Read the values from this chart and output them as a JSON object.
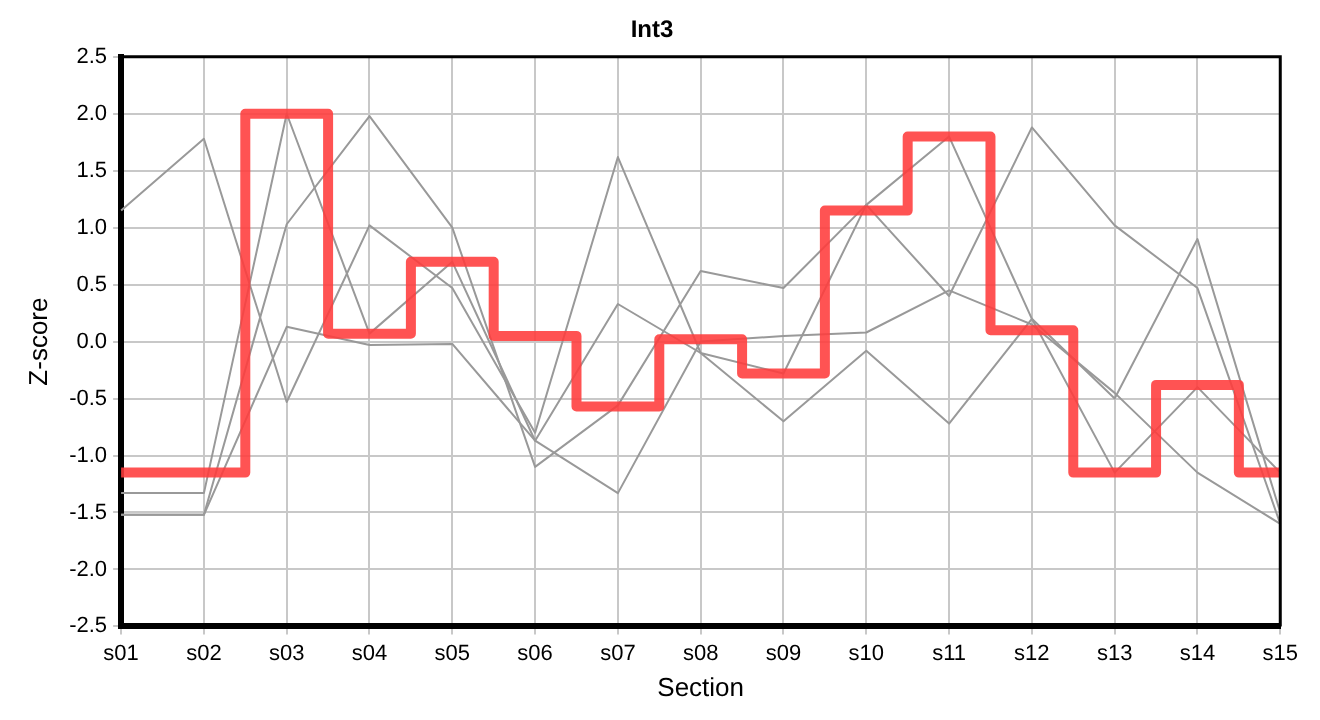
{
  "chart_data": {
    "type": "line",
    "title": "Int3",
    "xlabel": "Section",
    "ylabel": "Z-score",
    "categories": [
      "s01",
      "s02",
      "s03",
      "s04",
      "s05",
      "s06",
      "s07",
      "s08",
      "s09",
      "s10",
      "s11",
      "s12",
      "s13",
      "s14",
      "s15"
    ],
    "series": [
      {
        "type": "line",
        "color": "#999999",
        "values": [
          1.15,
          1.78,
          -0.53,
          1.02,
          0.47,
          -0.8,
          1.62,
          -0.1,
          -0.28,
          1.2,
          0.4,
          1.88,
          1.02,
          0.47,
          -1.6
        ]
      },
      {
        "type": "line",
        "color": "#999999",
        "values": [
          -1.33,
          -1.33,
          2.0,
          0.07,
          0.7,
          -0.87,
          0.33,
          -0.1,
          -0.7,
          -0.08,
          -0.72,
          0.2,
          -0.5,
          0.9,
          -1.5
        ]
      },
      {
        "type": "line",
        "color": "#999999",
        "values": [
          -1.52,
          -1.52,
          1.03,
          1.98,
          1.0,
          -1.1,
          -0.56,
          0.62,
          0.47,
          1.2,
          1.8,
          0.2,
          -1.15,
          -0.4,
          -1.15
        ]
      },
      {
        "type": "line",
        "color": "#999999",
        "values": [
          -1.52,
          -1.52,
          0.13,
          -0.03,
          -0.02,
          -0.87,
          -1.33,
          0.0,
          0.05,
          0.08,
          0.45,
          0.15,
          -0.45,
          -1.15,
          -1.6
        ]
      },
      {
        "type": "step",
        "color": "#ff3b3b",
        "values": [
          -1.15,
          -1.15,
          2.0,
          0.07,
          0.7,
          0.05,
          -0.57,
          0.02,
          -0.28,
          1.15,
          1.8,
          0.1,
          -1.15,
          -0.38,
          -1.15
        ]
      }
    ],
    "ylim": [
      -2.5,
      2.5
    ],
    "yticks": [
      -2.5,
      {
        "value": -2,
        "label": "-2.0"
      },
      -1.5,
      {
        "value": -1,
        "label": "-1.0"
      },
      -0.5,
      {
        "value": 0,
        "label": "0.0"
      },
      0.5,
      {
        "value": 1,
        "label": "1.0"
      },
      1.5,
      {
        "value": 2,
        "label": "2.0"
      },
      2.5
    ],
    "grid": true,
    "legend": false,
    "marker": "none",
    "line_style": "solid"
  }
}
